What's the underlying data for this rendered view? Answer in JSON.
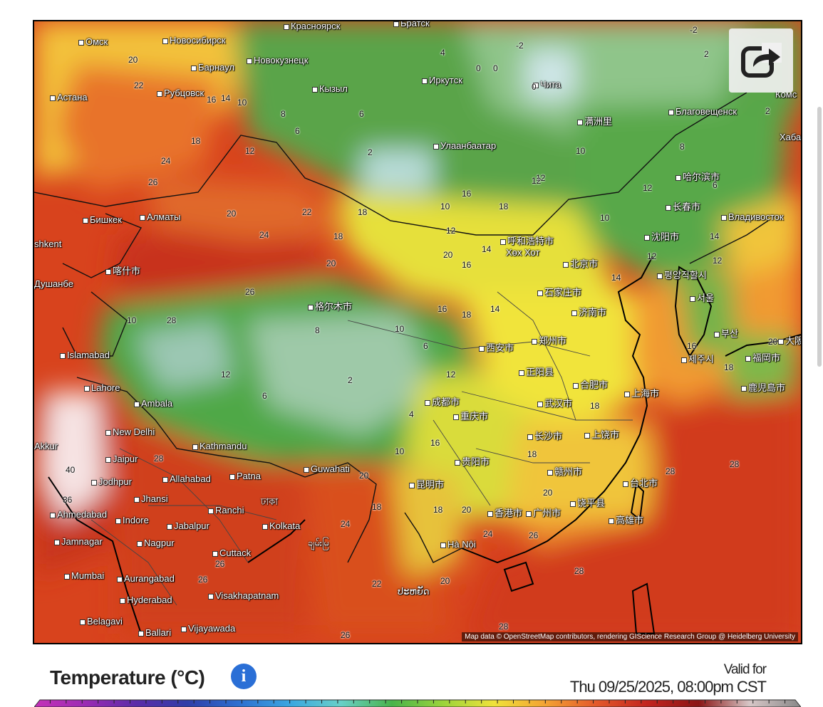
{
  "map": {
    "attribution": "Map data © OpenStreetMap contributors, rendering GIScience Research Group @ Heidelberg University",
    "cities": [
      {
        "name": "Омск"
      },
      {
        "name": "Новосибирск"
      },
      {
        "name": "Красноярск"
      },
      {
        "name": "Братск"
      },
      {
        "name": "Барнаул"
      },
      {
        "name": "Новокузнецк"
      },
      {
        "name": "Иркутск"
      },
      {
        "name": "Чита"
      },
      {
        "name": "Астана"
      },
      {
        "name": "Рубцовск"
      },
      {
        "name": "Кызыл"
      },
      {
        "name": "Улаанбаатар"
      },
      {
        "name": "Благовещенск"
      },
      {
        "name": "满洲里"
      },
      {
        "name": "哈尔滨市"
      },
      {
        "name": "长春市"
      },
      {
        "name": "Владивосток"
      },
      {
        "name": "Бишкек"
      },
      {
        "name": "Алматы"
      },
      {
        "name": "shkent"
      },
      {
        "name": "喀什市"
      },
      {
        "name": "呼和浩特市"
      },
      {
        "name": "Хөх Хот"
      },
      {
        "name": "沈阳市"
      },
      {
        "name": "평양직할시"
      },
      {
        "name": "北京市"
      },
      {
        "name": "石家庄市"
      },
      {
        "name": "济南市"
      },
      {
        "name": "서울"
      },
      {
        "name": "부산"
      },
      {
        "name": "福岡市"
      },
      {
        "name": "大阪"
      },
      {
        "name": "제주시"
      },
      {
        "name": "鹿児島市"
      },
      {
        "name": "格尔木市"
      },
      {
        "name": "西安市"
      },
      {
        "name": "郑州市"
      },
      {
        "name": "正阳县"
      },
      {
        "name": "合肥市"
      },
      {
        "name": "上海市"
      },
      {
        "name": "武汉市"
      },
      {
        "name": "Islamabad"
      },
      {
        "name": "Lahore"
      },
      {
        "name": "Ambala"
      },
      {
        "name": "New Delhi"
      },
      {
        "name": "Jaipur"
      },
      {
        "name": "Jodhpur"
      },
      {
        "name": "Allahabad"
      },
      {
        "name": "Kathmandu"
      },
      {
        "name": "Guwahati"
      },
      {
        "name": "Patna"
      },
      {
        "name": "Ahmedabad"
      },
      {
        "name": "Jhansi"
      },
      {
        "name": "Indore"
      },
      {
        "name": "Jabalpur"
      },
      {
        "name": "Ranchi"
      },
      {
        "name": "Jamnagar"
      },
      {
        "name": "Nagpur"
      },
      {
        "name": "Kolkata"
      },
      {
        "name": "Cuttack"
      },
      {
        "name": "Mumbai"
      },
      {
        "name": "Aurangabad"
      },
      {
        "name": "Hyderabad"
      },
      {
        "name": "Visakhapatnam"
      },
      {
        "name": "Belagavi"
      },
      {
        "name": "Ballari"
      },
      {
        "name": "Vijayawada"
      },
      {
        "name": "成都市"
      },
      {
        "name": "重庆市"
      },
      {
        "name": "长沙市"
      },
      {
        "name": "上饶市"
      },
      {
        "name": "贵阳市"
      },
      {
        "name": "赣州市"
      },
      {
        "name": "昆明市"
      },
      {
        "name": "台北市"
      },
      {
        "name": "高雄市"
      },
      {
        "name": "香港市"
      },
      {
        "name": "广州市"
      },
      {
        "name": "饶平县"
      },
      {
        "name": "Hà Nội"
      },
      {
        "name": "ঢাকা"
      },
      {
        "name": "ချမ်းမြ"
      },
      {
        "name": "ປະຫຍັດ"
      },
      {
        "name": "Душанбе"
      },
      {
        "name": "Akkur"
      },
      {
        "name": "Хабаро"
      },
      {
        "name": "Комс"
      }
    ],
    "temperature_labels": [
      "20",
      "22",
      "18",
      "16",
      "14",
      "12",
      "10",
      "8",
      "6",
      "4",
      "2",
      "0",
      "-2",
      "24",
      "26",
      "28",
      "40",
      "36"
    ]
  },
  "share": {
    "icon": "share-icon"
  },
  "legend": {
    "title": "Temperature (°C)",
    "info_icon": "info-icon",
    "valid_label": "Valid for",
    "valid_time": "Thu 09/25/2025, 08:00pm CST",
    "scale_colors": [
      "#c531b8",
      "#9b2bb3",
      "#5a2ca8",
      "#2f3ea8",
      "#2d6fd0",
      "#3aa6e0",
      "#69d0c8",
      "#48b34a",
      "#9bd43a",
      "#f0e23a",
      "#f3a233",
      "#e3582a",
      "#c2241f",
      "#8a1515",
      "#d7c7c7",
      "#888888"
    ]
  },
  "accent_colors": {
    "info": "#2a6fd6",
    "frame": "#000000"
  }
}
